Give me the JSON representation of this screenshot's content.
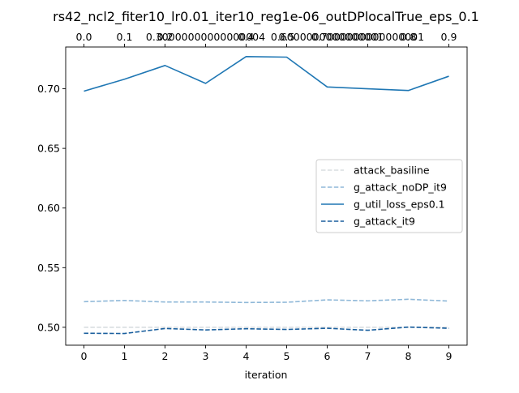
{
  "chart_data": {
    "type": "line",
    "title": "rs42_ncl2_fiter10_lr0.01_iter10_reg1e-06_outDPlocalTrue_eps_0.1",
    "xlabel": "iteration",
    "ylabel": "",
    "x": [
      0,
      1,
      2,
      3,
      4,
      5,
      6,
      7,
      8,
      9
    ],
    "x_tick_labels": [
      "0",
      "1",
      "2",
      "3",
      "4",
      "5",
      "6",
      "7",
      "8",
      "9"
    ],
    "top_tick_labels": [
      "0.0",
      "0.1",
      "0.2",
      "0.30000000000000004",
      "0.4",
      "0.5",
      "0.6000000000000001",
      "0.7000000000000001",
      "0.8",
      "0.9"
    ],
    "xlim": [
      -0.45,
      9.45
    ],
    "ylim": [
      0.485,
      0.735
    ],
    "y_ticks": [
      0.5,
      0.55,
      0.6,
      0.65,
      0.7
    ],
    "y_tick_labels": [
      "0.50",
      "0.55",
      "0.60",
      "0.65",
      "0.70"
    ],
    "grid": false,
    "legend_position": "center-right",
    "series": [
      {
        "name": "attack_basiline",
        "color": "#d9dde0",
        "dash": "dashed",
        "values": [
          0.5,
          0.5,
          0.5,
          0.5,
          0.5,
          0.5,
          0.5,
          0.5,
          0.5,
          0.5
        ]
      },
      {
        "name": "g_attack_noDP_it9",
        "color": "#8fb8d8",
        "dash": "dashed",
        "values": [
          0.5215,
          0.5225,
          0.5212,
          0.5212,
          0.5208,
          0.521,
          0.523,
          0.5222,
          0.5235,
          0.522
        ]
      },
      {
        "name": "g_util_loss_eps0.1",
        "color": "#1f77b4",
        "dash": "solid",
        "values": [
          0.698,
          0.708,
          0.7195,
          0.7045,
          0.727,
          0.7265,
          0.7015,
          0.7,
          0.6985,
          0.7105
        ]
      },
      {
        "name": "g_attack_it9",
        "color": "#1a5f9e",
        "dash": "dashed",
        "values": [
          0.495,
          0.4948,
          0.499,
          0.4978,
          0.4988,
          0.4982,
          0.4992,
          0.4975,
          0.5002,
          0.4992
        ]
      }
    ]
  }
}
